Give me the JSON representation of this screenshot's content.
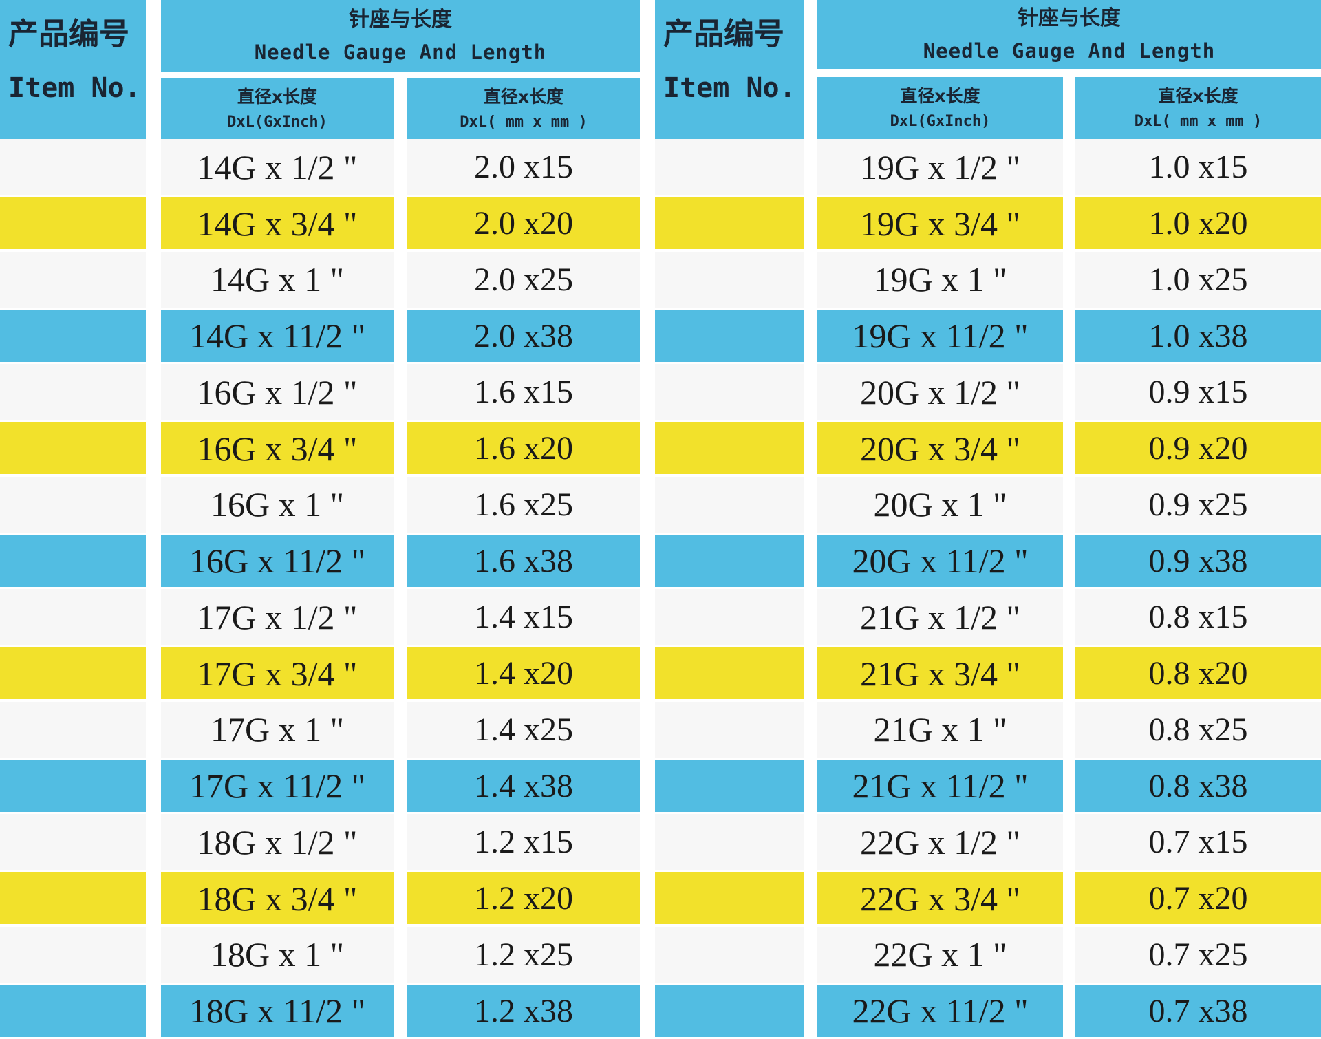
{
  "header": {
    "item_no_cn": "产品编号",
    "item_no_en": "Item No.",
    "group_cn": "针座与长度",
    "group_en": "Needle Gauge And Length",
    "col_gauge_cn": "直径x长度",
    "col_gauge_en": "DxL(GxInch)",
    "col_mm_cn": "直径x长度",
    "col_mm_en": "DxL( mm x mm )"
  },
  "colors": {
    "blue": "#52bde2",
    "yellow": "#f2e12b",
    "white": "#f7f7f7"
  },
  "row_pattern": [
    "white",
    "yellow",
    "white",
    "blue"
  ],
  "left_rows": [
    {
      "gauge": "14G x 1/2 \"",
      "mm": "2.0 x15"
    },
    {
      "gauge": "14G x 3/4 \"",
      "mm": "2.0 x20"
    },
    {
      "gauge": "14G x 1 \"",
      "mm": "2.0 x25"
    },
    {
      "gauge": "14G x 11/2 \"",
      "mm": "2.0 x38"
    },
    {
      "gauge": "16G x 1/2 \"",
      "mm": "1.6 x15"
    },
    {
      "gauge": "16G x 3/4 \"",
      "mm": "1.6 x20"
    },
    {
      "gauge": "16G x 1 \"",
      "mm": "1.6 x25"
    },
    {
      "gauge": "16G x 11/2 \"",
      "mm": "1.6 x38"
    },
    {
      "gauge": "17G x 1/2 \"",
      "mm": "1.4 x15"
    },
    {
      "gauge": "17G x 3/4 \"",
      "mm": "1.4 x20"
    },
    {
      "gauge": "17G x 1 \"",
      "mm": "1.4 x25"
    },
    {
      "gauge": "17G x 11/2 \"",
      "mm": "1.4 x38"
    },
    {
      "gauge": "18G x 1/2 \"",
      "mm": "1.2 x15"
    },
    {
      "gauge": "18G x 3/4 \"",
      "mm": "1.2 x20"
    },
    {
      "gauge": "18G x 1 \"",
      "mm": "1.2 x25"
    },
    {
      "gauge": "18G x 11/2 \"",
      "mm": "1.2 x38"
    }
  ],
  "right_rows": [
    {
      "gauge": "19G x 1/2 \"",
      "mm": "1.0 x15"
    },
    {
      "gauge": "19G x 3/4 \"",
      "mm": "1.0 x20"
    },
    {
      "gauge": "19G x 1 \"",
      "mm": "1.0 x25"
    },
    {
      "gauge": "19G x 11/2 \"",
      "mm": "1.0 x38"
    },
    {
      "gauge": "20G x 1/2 \"",
      "mm": "0.9 x15"
    },
    {
      "gauge": "20G x 3/4 \"",
      "mm": "0.9 x20"
    },
    {
      "gauge": "20G x 1 \"",
      "mm": "0.9 x25"
    },
    {
      "gauge": "20G x 11/2 \"",
      "mm": "0.9 x38"
    },
    {
      "gauge": "21G x 1/2 \"",
      "mm": "0.8 x15"
    },
    {
      "gauge": "21G x 3/4 \"",
      "mm": "0.8 x20"
    },
    {
      "gauge": "21G x 1 \"",
      "mm": "0.8 x25"
    },
    {
      "gauge": "21G x 11/2 \"",
      "mm": "0.8 x38"
    },
    {
      "gauge": "22G x 1/2 \"",
      "mm": "0.7 x15"
    },
    {
      "gauge": "22G x 3/4 \"",
      "mm": "0.7 x20"
    },
    {
      "gauge": "22G x 1 \"",
      "mm": "0.7 x25"
    },
    {
      "gauge": "22G x 11/2 \"",
      "mm": "0.7 x38"
    }
  ]
}
